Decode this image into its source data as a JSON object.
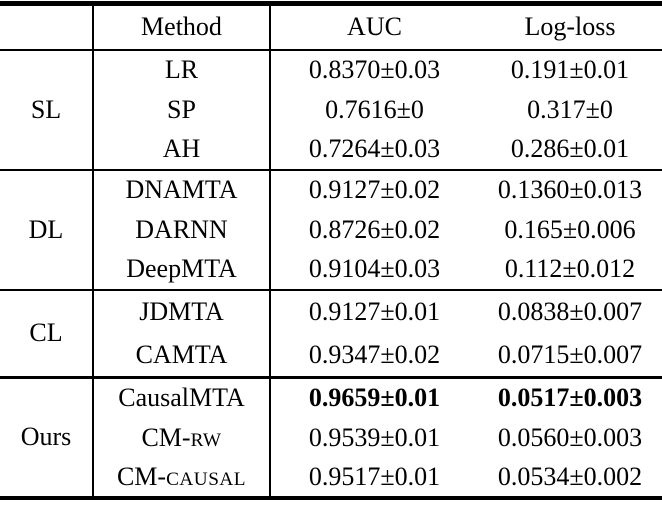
{
  "table": {
    "columns": {
      "group": "",
      "method": "Method",
      "auc": "AUC",
      "logloss": "Log-loss"
    },
    "groups": [
      {
        "name": "SL",
        "rows": [
          {
            "method": "LR",
            "auc": "0.8370±0.03",
            "logloss": "0.191±0.01"
          },
          {
            "method": "SP",
            "auc": "0.7616±0",
            "logloss": "0.317±0"
          },
          {
            "method": "AH",
            "auc": "0.7264±0.03",
            "logloss": "0.286±0.01"
          }
        ]
      },
      {
        "name": "DL",
        "rows": [
          {
            "method": "DNAMTA",
            "auc": "0.9127±0.02",
            "logloss": "0.1360±0.013"
          },
          {
            "method": "DARNN",
            "auc": "0.8726±0.02",
            "logloss": "0.165±0.006"
          },
          {
            "method": "DeepMTA",
            "auc": "0.9104±0.03",
            "logloss": "0.112±0.012"
          }
        ]
      },
      {
        "name": "CL",
        "rows": [
          {
            "method": "JDMTA",
            "auc": "0.9127±0.01",
            "logloss": "0.0838±0.007"
          },
          {
            "method": "CAMTA",
            "auc": "0.9347±0.02",
            "logloss": "0.0715±0.007"
          }
        ]
      },
      {
        "name": "Ours",
        "rows": [
          {
            "method": "CausalMTA",
            "auc": "0.9659±0.01",
            "logloss": "0.0517±0.003",
            "bold": true
          },
          {
            "method": "CM-",
            "method_sc": "RW",
            "auc": "0.9539±0.01",
            "logloss": "0.0560±0.003"
          },
          {
            "method": "CM-",
            "method_sc": "CAUSAL",
            "auc": "0.9517±0.01",
            "logloss": "0.0534±0.002"
          }
        ]
      }
    ]
  }
}
